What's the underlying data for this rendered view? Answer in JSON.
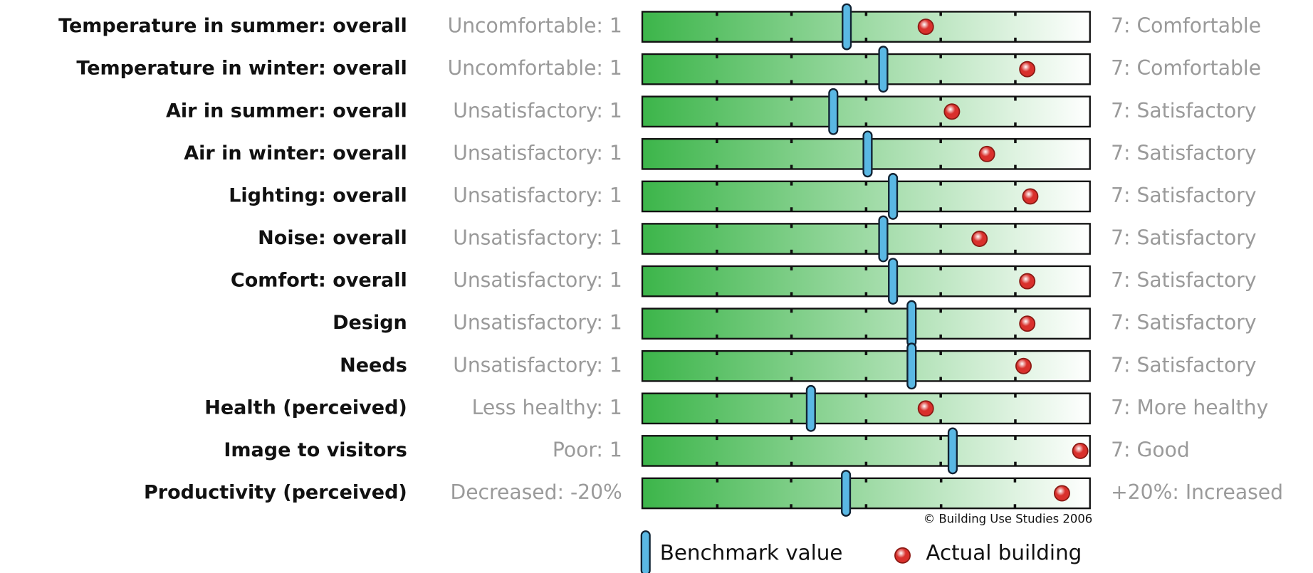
{
  "chart_data": {
    "type": "benchmark-rows",
    "rows": [
      {
        "label": "Temperature in summer: overall",
        "low_label": "Uncomfortable: 1",
        "high_label": "7: Comfortable",
        "xlim": [
          1,
          7
        ],
        "xticks": [
          2,
          3,
          4,
          5,
          6
        ],
        "benchmark": 3.74,
        "actual": 4.8
      },
      {
        "label": "Temperature in winter: overall",
        "low_label": "Uncomfortable: 1",
        "high_label": "7: Comfortable",
        "xlim": [
          1,
          7
        ],
        "xticks": [
          2,
          3,
          4,
          5,
          6
        ],
        "benchmark": 4.23,
        "actual": 6.16
      },
      {
        "label": "Air in summer: overall",
        "low_label": "Unsatisfactory: 1",
        "high_label": "7: Satisfactory",
        "xlim": [
          1,
          7
        ],
        "xticks": [
          2,
          3,
          4,
          5,
          6
        ],
        "benchmark": 3.56,
        "actual": 5.15
      },
      {
        "label": "Air in winter: overall",
        "low_label": "Unsatisfactory: 1",
        "high_label": "7: Satisfactory",
        "xlim": [
          1,
          7
        ],
        "xticks": [
          2,
          3,
          4,
          5,
          6
        ],
        "benchmark": 4.02,
        "actual": 5.62
      },
      {
        "label": "Lighting: overall",
        "low_label": "Unsatisfactory: 1",
        "high_label": "7: Satisfactory",
        "xlim": [
          1,
          7
        ],
        "xticks": [
          2,
          3,
          4,
          5,
          6
        ],
        "benchmark": 4.36,
        "actual": 6.2
      },
      {
        "label": "Noise: overall",
        "low_label": "Unsatisfactory: 1",
        "high_label": "7: Satisfactory",
        "xlim": [
          1,
          7
        ],
        "xticks": [
          2,
          3,
          4,
          5,
          6
        ],
        "benchmark": 4.23,
        "actual": 5.52
      },
      {
        "label": "Comfort: overall",
        "low_label": "Unsatisfactory: 1",
        "high_label": "7: Satisfactory",
        "xlim": [
          1,
          7
        ],
        "xticks": [
          2,
          3,
          4,
          5,
          6
        ],
        "benchmark": 4.36,
        "actual": 6.16
      },
      {
        "label": "Design",
        "low_label": "Unsatisfactory: 1",
        "high_label": "7: Satisfactory",
        "xlim": [
          1,
          7
        ],
        "xticks": [
          2,
          3,
          4,
          5,
          6
        ],
        "benchmark": 4.61,
        "actual": 6.16
      },
      {
        "label": "Needs",
        "low_label": "Unsatisfactory: 1",
        "high_label": "7: Satisfactory",
        "xlim": [
          1,
          7
        ],
        "xticks": [
          2,
          3,
          4,
          5,
          6
        ],
        "benchmark": 4.61,
        "actual": 6.11
      },
      {
        "label": "Health (perceived)",
        "low_label": "Less healthy: 1",
        "high_label": "7: More healthy",
        "xlim": [
          1,
          7
        ],
        "xticks": [
          2,
          3,
          4,
          5,
          6
        ],
        "benchmark": 3.26,
        "actual": 4.8
      },
      {
        "label": "Image to visitors",
        "low_label": "Poor: 1",
        "high_label": "7: Good",
        "xlim": [
          1,
          7
        ],
        "xticks": [
          2,
          3,
          4,
          5,
          6
        ],
        "benchmark": 5.16,
        "actual": 6.87
      },
      {
        "label": "Productivity (perceived)",
        "low_label": "Decreased: -20%",
        "high_label": "+20%: Increased",
        "xlim": [
          -20,
          20
        ],
        "xticks": [
          -13.3,
          -6.7,
          0,
          6.7,
          13.3
        ],
        "benchmark": -1.8,
        "actual": 17.5
      }
    ],
    "bar_colors": [
      "#3cb54a",
      "#ffffff"
    ],
    "legend": [
      {
        "name": "Benchmark value",
        "color": "#5ab8e4"
      },
      {
        "name": "Actual building",
        "color": "#d9302c"
      }
    ],
    "credit": "© Building Use Studies 2006"
  }
}
